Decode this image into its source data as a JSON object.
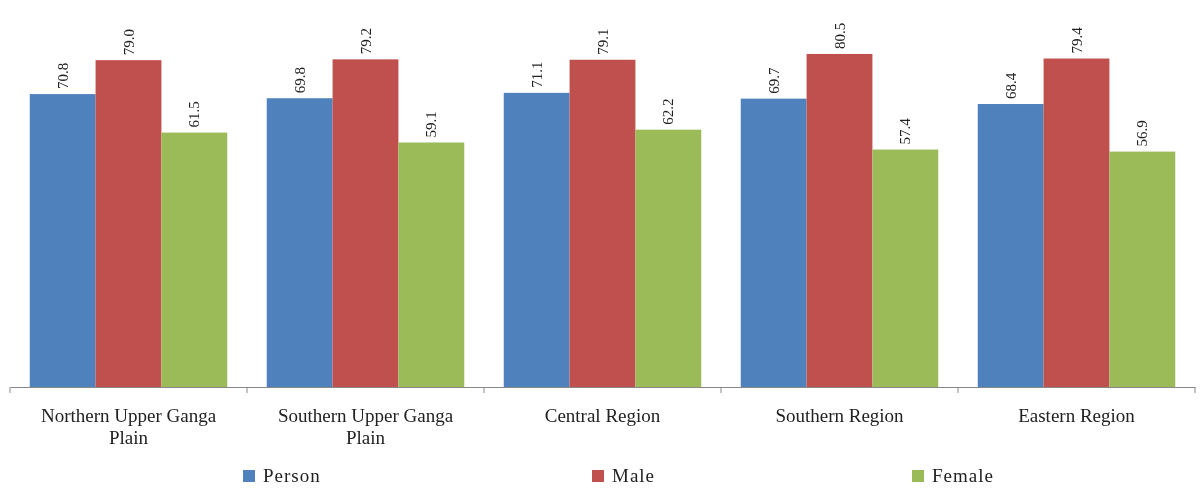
{
  "chart_data": {
    "type": "bar",
    "categories": [
      "Northern Upper Ganga Plain",
      "Southern Upper Ganga Plain",
      "Central Region",
      "Southern Region",
      "Eastern Region"
    ],
    "series": [
      {
        "name": "Person",
        "color": "#4f81bd",
        "values": [
          70.8,
          69.8,
          71.1,
          69.7,
          68.4
        ],
        "value_labels": [
          "70.8",
          "69.8",
          "71.1",
          "69.7",
          "68.4"
        ]
      },
      {
        "name": "Male",
        "color": "#c0504d",
        "values": [
          79.0,
          79.2,
          79.1,
          80.5,
          79.4
        ],
        "value_labels": [
          "79.0",
          "79.2",
          "79.1",
          "80.5",
          "79.4"
        ]
      },
      {
        "name": "Female",
        "color": "#9bbb59",
        "values": [
          61.5,
          59.1,
          62.2,
          57.4,
          56.9
        ],
        "value_labels": [
          "61.5",
          "59.1",
          "62.2",
          "57.4",
          "56.9"
        ]
      }
    ],
    "legend": "bottom",
    "tick_labels": "x"
  }
}
